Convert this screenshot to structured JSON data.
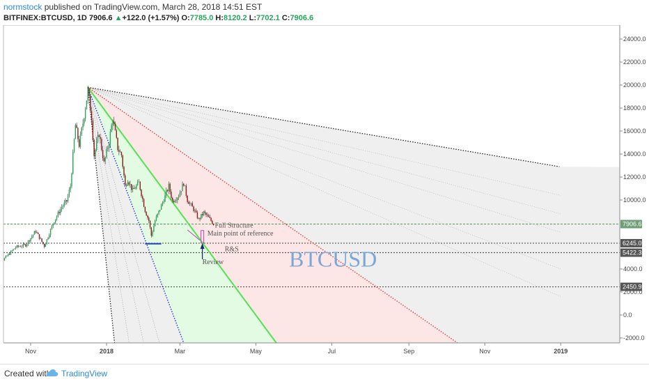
{
  "header": {
    "author": "normstock",
    "published_text": " published on TradingView.com, March 28, 2018 14:51 EST",
    "symbol": "BITFINEX:BTCUSD, 1D",
    "last": "7906.6",
    "change_arrow": "▲",
    "change": "+122.0 (+1.57%)",
    "o_label": "O:",
    "o_value": "7785.0",
    "h_label": "H:",
    "h_value": "8120.2",
    "l_label": "L:",
    "l_value": "7702.1",
    "c_label": "C:",
    "c_value": "7906.6"
  },
  "footer": {
    "created_with": "Created with",
    "brand": "TradingView"
  },
  "colors": {
    "bull": "#26a65b",
    "bear": "#8b1a1a",
    "green_fan": "#52e352",
    "red_fan": "#e83a3a",
    "blue_fan": "#2233cc",
    "badge_last": "#6f9e76",
    "badge_level": "#555555"
  },
  "chart_data": {
    "type": "candlestick",
    "symbol": "BITFINEX:BTCUSD",
    "interval": "1D",
    "x_axis": {
      "ticks": [
        {
          "label": "Nov",
          "date": "2017-11-01"
        },
        {
          "label": "2018",
          "date": "2018-01-01",
          "bold": true
        },
        {
          "label": "Mar",
          "date": "2018-03-01"
        },
        {
          "label": "May",
          "date": "2018-05-01"
        },
        {
          "label": "Jul",
          "date": "2018-07-01"
        },
        {
          "label": "Sep",
          "date": "2018-09-01"
        },
        {
          "label": "Nov",
          "date": "2018-11-01"
        },
        {
          "label": "2019",
          "date": "2019-01-01",
          "bold": true
        }
      ]
    },
    "y_axis": {
      "range": [
        -3000,
        25500
      ],
      "ticks": [
        {
          "label": "24000.0",
          "value": 24000
        },
        {
          "label": "22000.0",
          "value": 22000
        },
        {
          "label": "20000.0",
          "value": 20000
        },
        {
          "label": "18000.0",
          "value": 18000
        },
        {
          "label": "16000.0",
          "value": 16000
        },
        {
          "label": "14000.0",
          "value": 14000
        },
        {
          "label": "12000.0",
          "value": 12000
        },
        {
          "label": "10000.0",
          "value": 10000
        },
        {
          "label": "4000.0",
          "value": 4000
        },
        {
          "label": "2000.0",
          "value": 2000
        },
        {
          "label": "0.0",
          "value": 0
        },
        {
          "label": "-2000.0",
          "value": -2000
        }
      ]
    },
    "price_path": [
      [
        "2017-10-01",
        4350
      ],
      [
        "2017-10-10",
        4800
      ],
      [
        "2017-10-20",
        5900
      ],
      [
        "2017-10-28",
        6100
      ],
      [
        "2017-11-05",
        7300
      ],
      [
        "2017-11-12",
        6000
      ],
      [
        "2017-11-20",
        8200
      ],
      [
        "2017-11-26",
        9400
      ],
      [
        "2017-11-30",
        9900
      ],
      [
        "2017-12-03",
        11200
      ],
      [
        "2017-12-07",
        16500
      ],
      [
        "2017-12-10",
        14800
      ],
      [
        "2017-12-13",
        16700
      ],
      [
        "2017-12-17",
        19500
      ],
      [
        "2017-12-20",
        17200
      ],
      [
        "2017-12-22",
        13900
      ],
      [
        "2017-12-26",
        15800
      ],
      [
        "2017-12-30",
        13200
      ],
      [
        "2018-01-03",
        15100
      ],
      [
        "2018-01-06",
        17100
      ],
      [
        "2018-01-10",
        14500
      ],
      [
        "2018-01-13",
        13900
      ],
      [
        "2018-01-16",
        11200
      ],
      [
        "2018-01-18",
        11800
      ],
      [
        "2018-01-22",
        10800
      ],
      [
        "2018-01-27",
        11500
      ],
      [
        "2018-02-01",
        9100
      ],
      [
        "2018-02-04",
        8200
      ],
      [
        "2018-02-06",
        6900
      ],
      [
        "2018-02-09",
        8200
      ],
      [
        "2018-02-14",
        9500
      ],
      [
        "2018-02-20",
        11200
      ],
      [
        "2018-02-23",
        9900
      ],
      [
        "2018-02-28",
        10400
      ],
      [
        "2018-03-04",
        11500
      ],
      [
        "2018-03-07",
        10000
      ],
      [
        "2018-03-12",
        9200
      ],
      [
        "2018-03-16",
        8300
      ],
      [
        "2018-03-20",
        8900
      ],
      [
        "2018-03-22",
        8700
      ],
      [
        "2018-03-26",
        8200
      ],
      [
        "2018-03-28",
        7906.6
      ]
    ],
    "levels": [
      {
        "value": 7906.6,
        "label": "7906.6",
        "style": "last"
      },
      {
        "value": 6245.0,
        "label": "6245.0",
        "style": "level"
      },
      {
        "value": 5422.3,
        "label": "5422.3",
        "style": "level"
      },
      {
        "value": 2450.9,
        "label": "2450.9",
        "style": "level"
      }
    ],
    "fan_origin": [
      "2017-12-17",
      19800
    ],
    "fan_lines": [
      {
        "name": "red",
        "to": [
          "2018-10-15",
          -2800
        ]
      },
      {
        "name": "green",
        "to": [
          "2018-05-20",
          -2800
        ]
      },
      {
        "name": "blue",
        "to": [
          "2018-03-06",
          -3000
        ]
      },
      {
        "name": "top",
        "to": [
          "2018-12-31",
          12900
        ]
      },
      {
        "name": "black-steep",
        "to": [
          "2018-01-08",
          -3000
        ]
      }
    ],
    "annotations": [
      {
        "text": "Full Structure",
        "date": "2018-03-29",
        "value": 7600
      },
      {
        "text": "Main point of reference",
        "date": "2018-03-23",
        "value": 6900
      },
      {
        "text": "R&S",
        "date": "2018-04-06",
        "value": 5550
      },
      {
        "text": "Review",
        "date": "2018-03-19",
        "value": 4420
      }
    ],
    "watermark": "BTCUSD"
  }
}
